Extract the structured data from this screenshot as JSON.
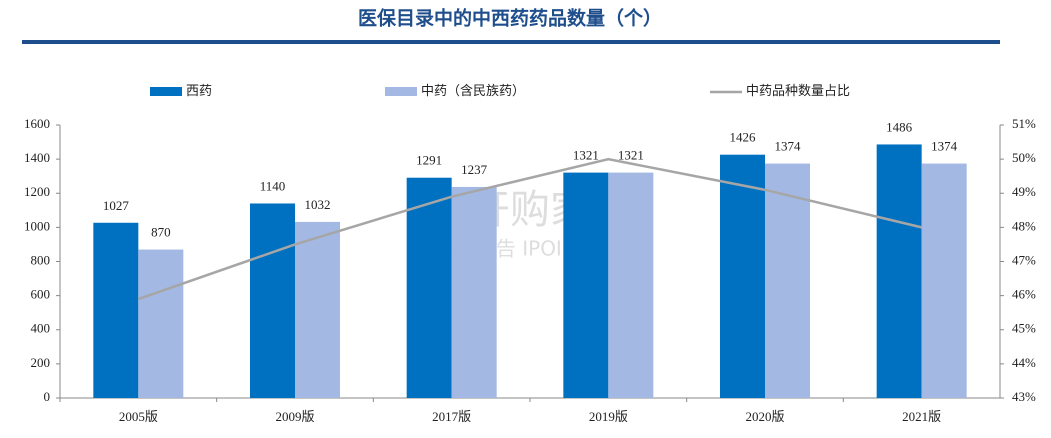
{
  "chart_data": {
    "type": "bar-line",
    "title": "医保目录中的中西药药品数量（个）",
    "categories": [
      "2005版",
      "2009版",
      "2017版",
      "2019版",
      "2020版",
      "2021版"
    ],
    "series": [
      {
        "name": "西药",
        "type": "bar",
        "color": "#0070c0",
        "values": [
          1027,
          1140,
          1291,
          1321,
          1426,
          1486
        ]
      },
      {
        "name": "中药（含民族药）",
        "type": "bar",
        "color": "#a3b9e3",
        "values": [
          870,
          1032,
          1237,
          1321,
          1374,
          1374
        ]
      },
      {
        "name": "中药品种数量占比",
        "type": "line",
        "axis": "y2",
        "color": "#a6a6a6",
        "values": [
          45.9,
          47.5,
          48.9,
          50.0,
          49.1,
          48.0
        ]
      }
    ],
    "ylim": [
      0,
      1600
    ],
    "yticks": [
      0,
      200,
      400,
      600,
      800,
      1000,
      1200,
      1400,
      1600
    ],
    "y2lim": [
      43,
      51
    ],
    "y2ticks": [
      {
        "value": 43,
        "label": "43%"
      },
      {
        "value": 44,
        "label": "44%"
      },
      {
        "value": 45,
        "label": "45%"
      },
      {
        "value": 46,
        "label": "46%"
      },
      {
        "value": 47,
        "label": "47%"
      },
      {
        "value": 48,
        "label": "48%"
      },
      {
        "value": 49,
        "label": "49%"
      },
      {
        "value": 50,
        "label": "50%"
      },
      {
        "value": 51,
        "label": "51%"
      }
    ],
    "watermark": [
      "开购家",
      "行业报告 IPOIPO.CN"
    ]
  }
}
